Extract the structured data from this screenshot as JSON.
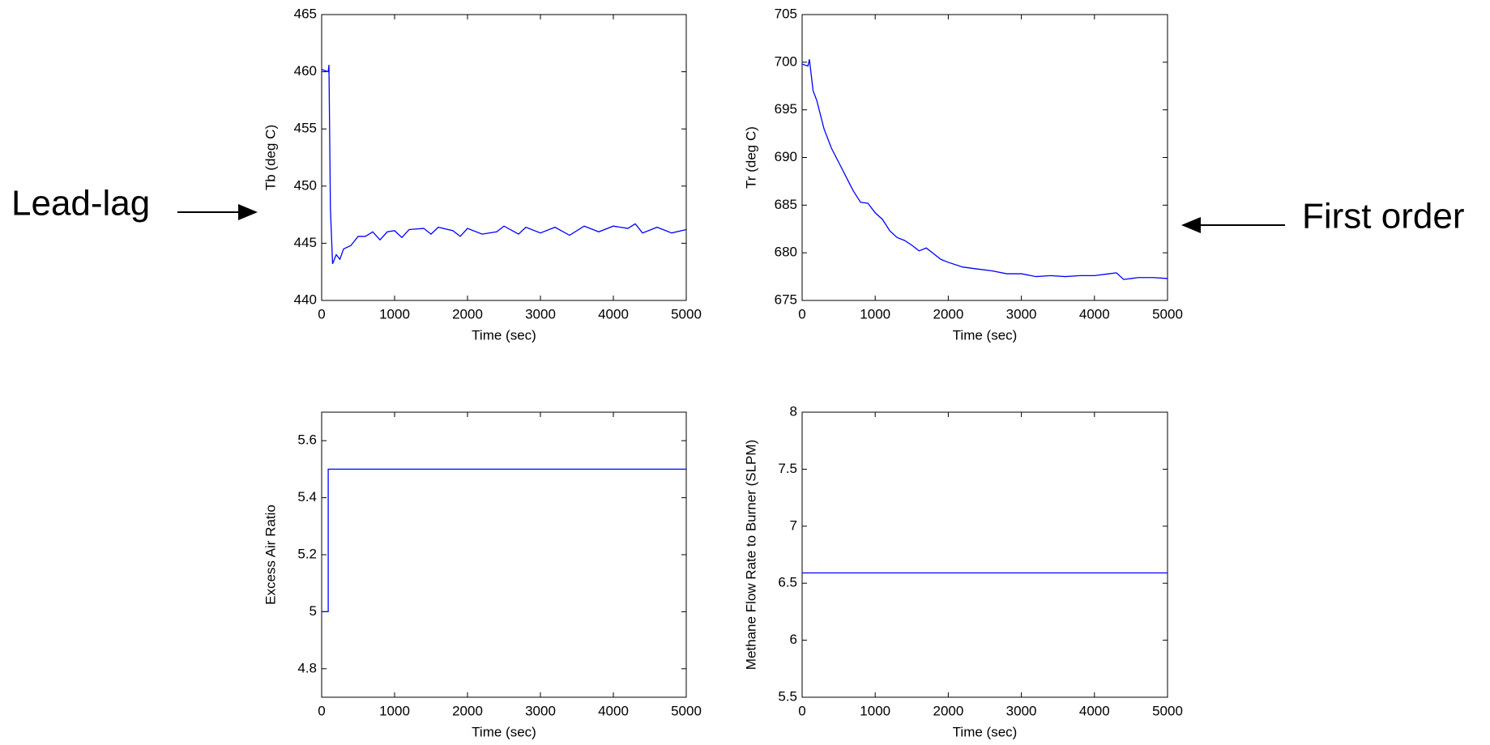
{
  "chart_data": [
    {
      "type": "line",
      "xlabel": "Time (sec)",
      "ylabel": "Tb (deg C)",
      "xlim": [
        0,
        5000
      ],
      "xticks": [
        0,
        1000,
        2000,
        3000,
        4000,
        5000
      ],
      "ylim": [
        440,
        465
      ],
      "yticks": [
        440,
        445,
        450,
        455,
        460,
        465
      ],
      "color": "#0000ff",
      "x": [
        0,
        90,
        100,
        120,
        150,
        200,
        250,
        300,
        400,
        500,
        600,
        700,
        800,
        900,
        1000,
        1100,
        1200,
        1400,
        1500,
        1600,
        1800,
        1900,
        2000,
        2200,
        2400,
        2500,
        2700,
        2800,
        3000,
        3200,
        3400,
        3600,
        3800,
        4000,
        4200,
        4300,
        4400,
        4600,
        4800,
        5000
      ],
      "values": [
        460.2,
        460.0,
        460.6,
        448,
        443.2,
        444.0,
        443.6,
        444.5,
        444.8,
        445.6,
        445.6,
        446.0,
        445.3,
        446.0,
        446.1,
        445.5,
        446.2,
        446.3,
        445.8,
        446.4,
        446.1,
        445.6,
        446.3,
        445.8,
        446.0,
        446.5,
        445.8,
        446.4,
        445.9,
        446.4,
        445.7,
        446.5,
        446.0,
        446.5,
        446.3,
        446.7,
        445.9,
        446.4,
        445.9,
        446.2
      ]
    },
    {
      "type": "line",
      "xlabel": "Time (sec)",
      "ylabel": "Tr (deg C)",
      "xlim": [
        0,
        5000
      ],
      "xticks": [
        0,
        1000,
        2000,
        3000,
        4000,
        5000
      ],
      "ylim": [
        675,
        705
      ],
      "yticks": [
        675,
        680,
        685,
        690,
        695,
        700,
        705
      ],
      "color": "#0000ff",
      "x": [
        0,
        80,
        100,
        150,
        200,
        300,
        400,
        500,
        600,
        700,
        800,
        900,
        1000,
        1100,
        1200,
        1300,
        1400,
        1500,
        1600,
        1700,
        1800,
        1900,
        2000,
        2200,
        2400,
        2600,
        2800,
        3000,
        3200,
        3400,
        3600,
        3800,
        4000,
        4200,
        4300,
        4400,
        4600,
        4800,
        5000
      ],
      "values": [
        699.8,
        699.6,
        700.3,
        697,
        696,
        693,
        691,
        689.5,
        688,
        686.5,
        685.3,
        685.2,
        684.2,
        683.5,
        682.3,
        681.6,
        681.3,
        680.8,
        680.2,
        680.5,
        679.9,
        679.3,
        679.0,
        678.5,
        678.3,
        678.1,
        677.8,
        677.8,
        677.5,
        677.6,
        677.5,
        677.6,
        677.6,
        677.8,
        677.9,
        677.2,
        677.4,
        677.4,
        677.3
      ]
    },
    {
      "type": "line",
      "xlabel": "Time (sec)",
      "ylabel": "Excess Air Ratio",
      "xlim": [
        0,
        5000
      ],
      "xticks": [
        0,
        1000,
        2000,
        3000,
        4000,
        5000
      ],
      "ylim": [
        4.7,
        5.7
      ],
      "yticks": [
        4.8,
        5,
        5.2,
        5.4,
        5.6
      ],
      "color": "#0000ff",
      "x": [
        0,
        90,
        90,
        5000
      ],
      "values": [
        5,
        5,
        5.5,
        5.5
      ]
    },
    {
      "type": "line",
      "xlabel": "Time (sec)",
      "ylabel": "Methane Flow Rate to Burner (SLPM)",
      "xlim": [
        0,
        5000
      ],
      "xticks": [
        0,
        1000,
        2000,
        3000,
        4000,
        5000
      ],
      "ylim": [
        5.5,
        8
      ],
      "yticks": [
        5.5,
        6,
        6.5,
        7,
        7.5,
        8
      ],
      "color": "#0000ff",
      "x": [
        0,
        5000
      ],
      "values": [
        6.59,
        6.59
      ]
    }
  ],
  "annotations": [
    {
      "text": "Lead-lag"
    },
    {
      "text": "First order"
    }
  ]
}
